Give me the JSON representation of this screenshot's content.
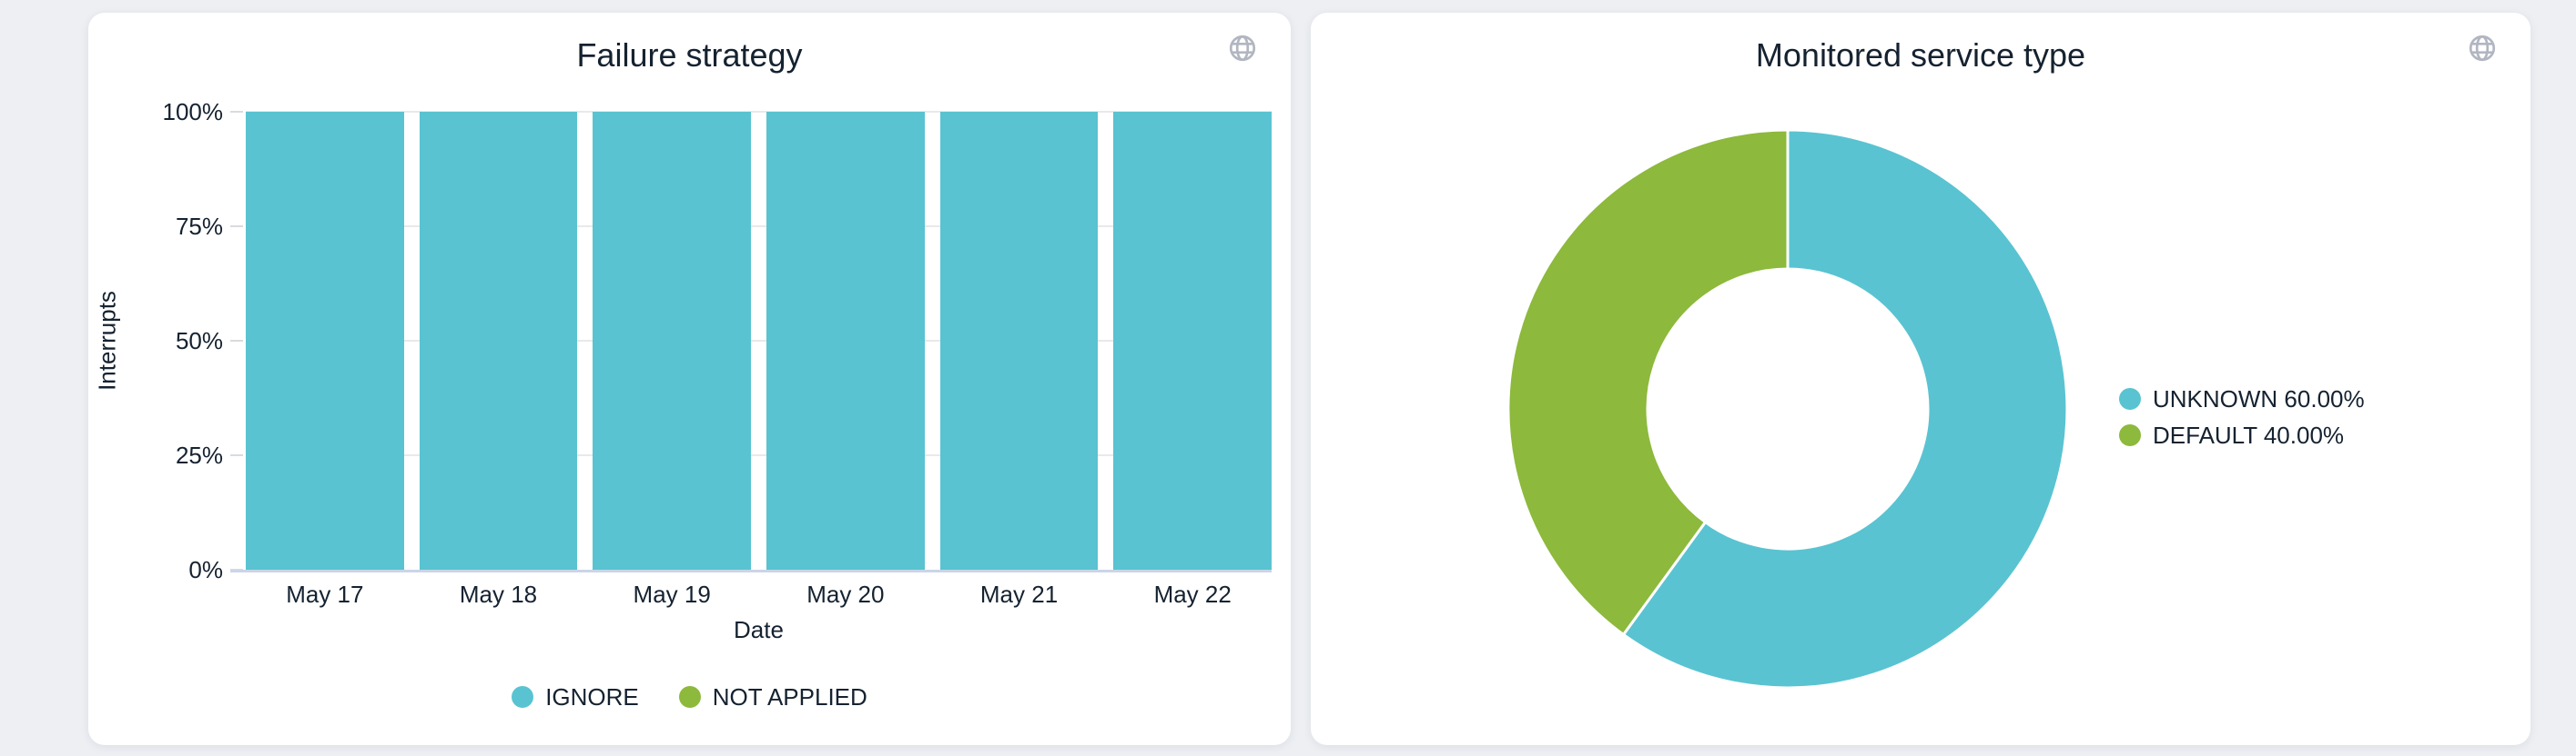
{
  "page": {
    "background_color": "#edeff3",
    "card_color": "#ffffff",
    "text_color": "#152230",
    "icon_color": "#b1b6c1",
    "card_action_icon": "globe-icon"
  },
  "chart_data": [
    {
      "card": "failure-strategy",
      "type": "bar",
      "stacked": true,
      "title": "Failure strategy",
      "categories": [
        "May 17",
        "May 18",
        "May 19",
        "May 20",
        "May 21",
        "May 22"
      ],
      "series": [
        {
          "name": "IGNORE",
          "color": "#59c3d1",
          "values": [
            100,
            100,
            100,
            100,
            100,
            100
          ]
        },
        {
          "name": "NOT APPLIED",
          "color": "#8db93c",
          "values": [
            0,
            0,
            0,
            0,
            0,
            0
          ]
        }
      ],
      "xlabel": "Date",
      "ylabel": "Interrupts",
      "ylim": [
        0,
        100
      ],
      "y_ticks": [
        {
          "label": "100%",
          "value": 100
        },
        {
          "label": "75%",
          "value": 75
        },
        {
          "label": "50%",
          "value": 50
        },
        {
          "label": "25%",
          "value": 25
        },
        {
          "label": "0%",
          "value": 0
        }
      ],
      "grid": true,
      "legend_position": "bottom"
    },
    {
      "card": "monitored-service-type",
      "type": "pie",
      "donut": true,
      "title": "Monitored service type",
      "start_angle_deg": 0,
      "inner_radius_ratio": 0.5,
      "slices": [
        {
          "label": "UNKNOWN",
          "value": 60.0,
          "legend_text": "UNKNOWN 60.00%",
          "color": "#59c3d1"
        },
        {
          "label": "DEFAULT",
          "value": 40.0,
          "legend_text": "DEFAULT 40.00%",
          "color": "#8db93c"
        }
      ],
      "legend_position": "right"
    }
  ]
}
